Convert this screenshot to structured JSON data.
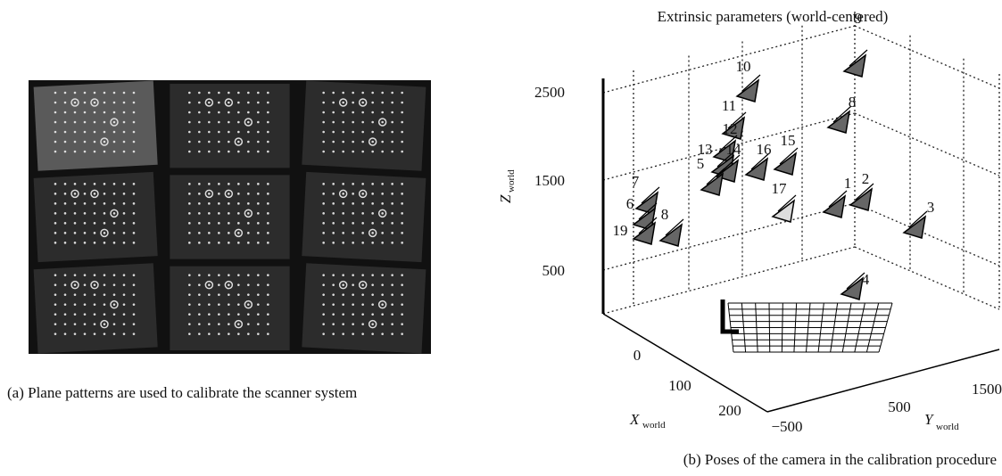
{
  "left_panel": {
    "caption": "(a) Plane patterns are used to calibrate the scanner system"
  },
  "right_panel": {
    "title": "Extrinsic parameters (world-centered)",
    "z_label": {
      "main": "Z",
      "sub": "world"
    },
    "z_ticks": [
      "2500",
      "1500",
      "500"
    ],
    "x_label": {
      "main": "X",
      "sub": "world"
    },
    "x_ticks": [
      "0",
      "100",
      "200"
    ],
    "y_label": {
      "main": "Y",
      "sub": "world"
    },
    "y_ticks": [
      "−500",
      "500",
      "1500"
    ],
    "camera_labels": [
      "9",
      "8",
      "10",
      "11",
      "12",
      "13",
      "14",
      "16",
      "15",
      "5",
      "17",
      "1",
      "2",
      "3",
      "7",
      "6",
      "19",
      "8",
      "4"
    ],
    "caption": "(b) Poses of the camera in the calibration procedure"
  }
}
